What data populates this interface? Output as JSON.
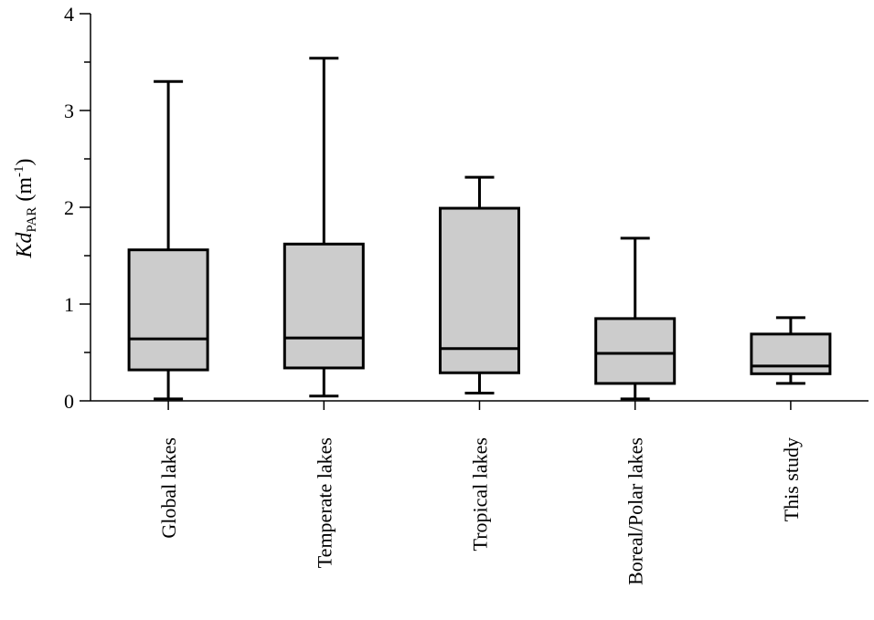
{
  "chart_data": {
    "type": "box",
    "ylabel": {
      "symbol": "Kd",
      "subscript": "PAR",
      "unit_prefix": "(m",
      "unit_exponent": "-1",
      "unit_suffix": ")"
    },
    "ylim": [
      0,
      4
    ],
    "yticks": [
      0,
      1,
      2,
      3,
      4
    ],
    "yticks_labeled": [
      "0",
      "1",
      "2",
      "3",
      "4"
    ],
    "categories": [
      "Global lakes",
      "Temperate lakes",
      "Tropical lakes",
      "Boreal/Polar lakes",
      "This study"
    ],
    "boxes": [
      {
        "min": 0.02,
        "q1": 0.32,
        "median": 0.64,
        "q3": 1.56,
        "max": 3.3
      },
      {
        "min": 0.05,
        "q1": 0.34,
        "median": 0.65,
        "q3": 1.62,
        "max": 3.54
      },
      {
        "min": 0.08,
        "q1": 0.29,
        "median": 0.54,
        "q3": 1.99,
        "max": 2.31
      },
      {
        "min": 0.02,
        "q1": 0.18,
        "median": 0.49,
        "q3": 0.85,
        "max": 1.68
      },
      {
        "min": 0.18,
        "q1": 0.28,
        "median": 0.36,
        "q3": 0.69,
        "max": 0.86
      }
    ],
    "box_color": "#cccccc",
    "line_color": "#000000",
    "grid": false,
    "legend": "none"
  }
}
